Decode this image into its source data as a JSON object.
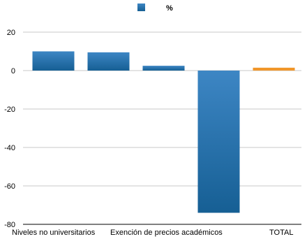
{
  "chart_data": {
    "type": "bar",
    "categories": [
      "Niveles no universitarios",
      "",
      "",
      "",
      "TOTAL"
    ],
    "category_labels": [
      "Niveles no universitarios",
      "Exención de precios académicos",
      "TOTAL"
    ],
    "series": [
      {
        "name": "%",
        "values": [
          10,
          9.5,
          2.5,
          -74,
          1.5
        ]
      }
    ],
    "highlight_index": 4,
    "ylim": [
      -80,
      20
    ],
    "yticks": [
      20,
      0,
      -20,
      -40,
      -60,
      -80
    ],
    "grid": true,
    "legend_position": "top",
    "colors": {
      "bar_top": "#3d86c4",
      "bar_bottom": "#165f94",
      "highlight": "#f0962a",
      "grid": "#c8c8c8",
      "axis": "#000000"
    }
  }
}
